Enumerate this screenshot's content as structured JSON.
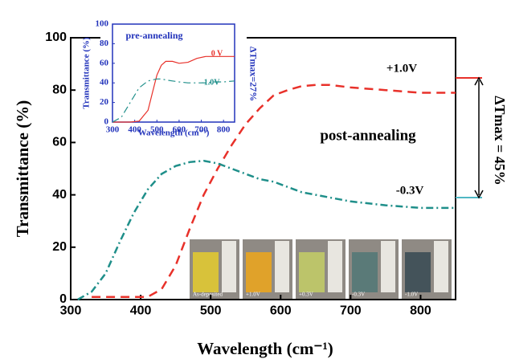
{
  "chart_data": [
    {
      "type": "line",
      "x_label": "Wavelength (cm⁻¹)",
      "y_label": "Transmittance (%)",
      "annotations": [
        "post-annealing",
        "ΔTmax = 45%"
      ],
      "photo_labels": [
        "As-deposited",
        "+1.0V",
        "+0.3V",
        "-0.3V",
        "-1.0V"
      ],
      "x": [
        310,
        330,
        350,
        370,
        390,
        410,
        430,
        450,
        470,
        490,
        510,
        530,
        550,
        570,
        590,
        610,
        630,
        650,
        670,
        700,
        750,
        800,
        850
      ],
      "series": [
        {
          "name": "+1.0V",
          "color": "#e8312a",
          "dash": "dashed",
          "values": [
            null,
            1,
            1,
            1,
            1,
            1,
            4,
            13,
            27,
            40,
            50,
            59,
            67,
            73,
            78,
            80,
            81.5,
            82,
            82,
            81,
            80,
            79,
            79
          ]
        },
        {
          "name": "-0.3V",
          "color": "#1f8f8a",
          "dash": "dashdot",
          "values": [
            0,
            3,
            10,
            22,
            33,
            42,
            48,
            51,
            52.5,
            53,
            52,
            50,
            48,
            46,
            45,
            43,
            41,
            40,
            39,
            37.5,
            36,
            35,
            35
          ]
        }
      ],
      "xlim": [
        300,
        850
      ],
      "ylim": [
        0,
        100
      ],
      "xticks": [
        300,
        400,
        500,
        600,
        700,
        800
      ],
      "yticks": [
        0,
        20,
        40,
        60,
        80,
        100
      ]
    },
    {
      "type": "line",
      "title": "pre-annealing",
      "x_label": "Wavelength (cm⁻¹)",
      "y_label": "Transmittance (%)",
      "annotations": [
        "ΔTmax=27%"
      ],
      "x": [
        300,
        340,
        380,
        420,
        460,
        480,
        500,
        520,
        540,
        570,
        600,
        640,
        680,
        720,
        760,
        800,
        850
      ],
      "series": [
        {
          "name": "0 V",
          "color": "#e8312a",
          "dash": "solid",
          "values": [
            0,
            0,
            0,
            1,
            12,
            30,
            48,
            58,
            62,
            62,
            60,
            61,
            65,
            67,
            67,
            67,
            67
          ]
        },
        {
          "name": "-1.0V",
          "color": "#1f8f8a",
          "dash": "dashdot",
          "values": [
            0,
            5,
            20,
            35,
            42,
            43,
            44,
            44,
            43,
            42,
            41,
            40,
            40,
            40,
            41,
            41,
            42
          ]
        }
      ],
      "xlim": [
        300,
        850
      ],
      "ylim": [
        0,
        100
      ],
      "xticks": [
        300,
        400,
        500,
        600,
        700,
        800
      ],
      "yticks": [
        0,
        20,
        40,
        60,
        80,
        100
      ]
    }
  ]
}
